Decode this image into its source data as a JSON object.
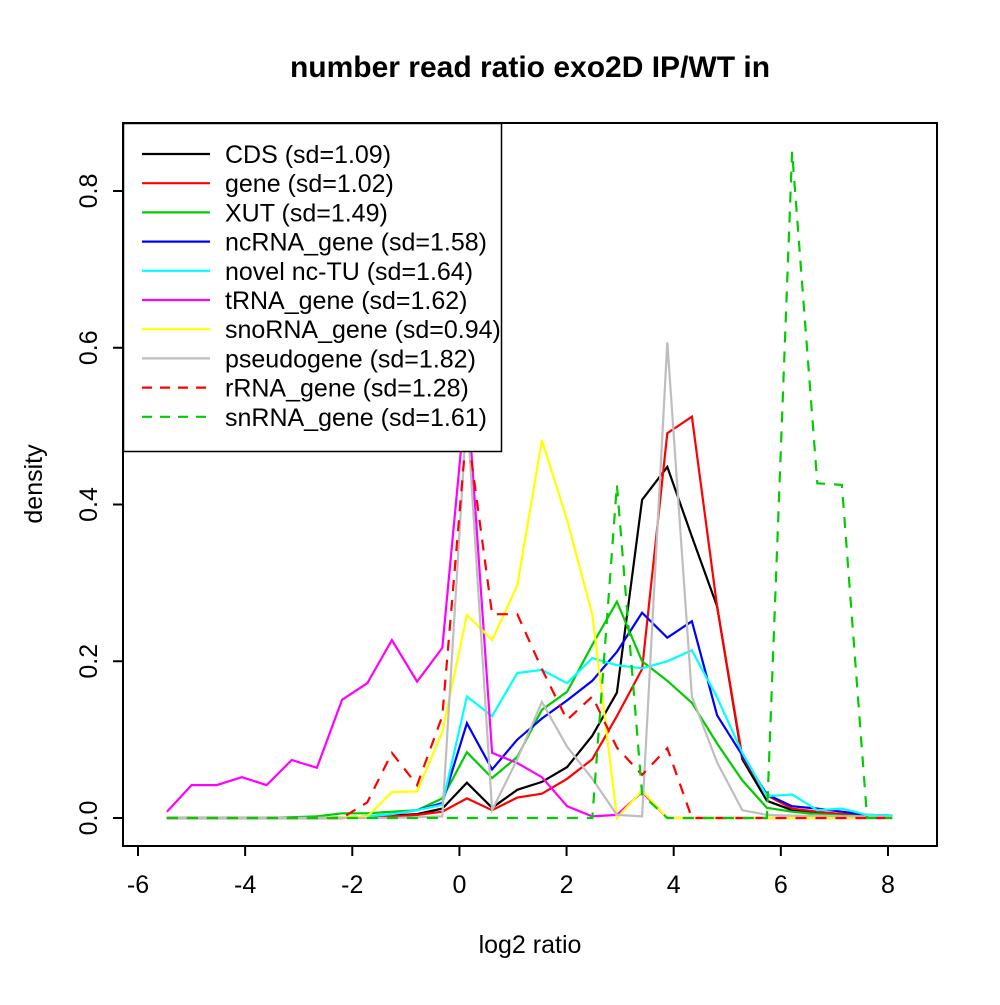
{
  "title": "number read ratio exo2D IP/WT in",
  "x_axis": {
    "label": "log2 ratio",
    "tick_labels": [
      "-6",
      "-4",
      "-2",
      "0",
      "2",
      "4",
      "6",
      "8"
    ],
    "tick_values": [
      -6,
      -4,
      -2,
      0,
      2,
      4,
      6,
      8
    ]
  },
  "y_axis": {
    "label": "density",
    "tick_labels": [
      "0.0",
      "0.2",
      "0.4",
      "0.6",
      "0.8"
    ],
    "tick_values": [
      0,
      0.2,
      0.4,
      0.6,
      0.8
    ]
  },
  "chart_data": {
    "type": "line",
    "title": "number read ratio exo2D IP/WT in",
    "xlabel": "log2 ratio",
    "ylabel": "density",
    "xlim": [
      -6.28,
      8.92
    ],
    "ylim": [
      -0.034,
      0.887
    ],
    "grid": false,
    "legend_position": "topleft",
    "x": [
      -5.46,
      -5.0,
      -4.53,
      -4.06,
      -3.6,
      -3.13,
      -2.66,
      -2.19,
      -1.72,
      -1.26,
      -0.79,
      -0.32,
      0.14,
      0.61,
      1.08,
      1.54,
      2.01,
      2.48,
      2.94,
      3.41,
      3.88,
      4.34,
      4.81,
      5.28,
      5.74,
      6.21,
      6.68,
      7.14,
      7.61,
      8.08
    ],
    "series": [
      {
        "name": "CDS",
        "label": "CDS (sd=1.09)",
        "sd": 1.09,
        "color": "#000000",
        "dash": false,
        "values": [
          0,
          0,
          0,
          0,
          0,
          0,
          0,
          0,
          0.002,
          0.003,
          0.005,
          0.012,
          0.045,
          0.013,
          0.036,
          0.046,
          0.065,
          0.105,
          0.16,
          0.406,
          0.448,
          0.359,
          0.27,
          0.075,
          0.022,
          0.01,
          0.007,
          0.005,
          0.003,
          0.002
        ]
      },
      {
        "name": "gene",
        "label": "gene (sd=1.02)",
        "sd": 1.02,
        "color": "#FF0000",
        "dash": false,
        "values": [
          0,
          0,
          0,
          0,
          0,
          0,
          0,
          0,
          0.001,
          0.002,
          0.004,
          0.008,
          0.025,
          0.01,
          0.026,
          0.031,
          0.05,
          0.075,
          0.13,
          0.19,
          0.491,
          0.512,
          0.27,
          0.078,
          0.029,
          0.012,
          0.008,
          0.005,
          0.003,
          0.002
        ]
      },
      {
        "name": "XUT",
        "label": "XUT (sd=1.49)",
        "sd": 1.49,
        "color": "#00CD00",
        "dash": false,
        "values": [
          0,
          0,
          0,
          0,
          0,
          0.001,
          0.002,
          0.006,
          0.006,
          0.008,
          0.01,
          0.025,
          0.084,
          0.051,
          0.078,
          0.138,
          0.161,
          0.221,
          0.276,
          0.2,
          0.175,
          0.147,
          0.095,
          0.048,
          0.013,
          0.008,
          0.005,
          0.003,
          0.002,
          0.002
        ]
      },
      {
        "name": "ncRNA_gene",
        "label": "ncRNA_gene (sd=1.58)",
        "sd": 1.58,
        "color": "#0000FF",
        "dash": false,
        "values": [
          0,
          0,
          0,
          0,
          0,
          0,
          0,
          0.001,
          0.002,
          0.005,
          0.01,
          0.019,
          0.121,
          0.062,
          0.1,
          0.127,
          0.15,
          0.175,
          0.212,
          0.262,
          0.23,
          0.251,
          0.131,
          0.08,
          0.03,
          0.015,
          0.012,
          0.008,
          0.004,
          0.003
        ]
      },
      {
        "name": "novel nc-TU",
        "label": "novel nc-TU (sd=1.64)",
        "sd": 1.64,
        "color": "#00FFFF",
        "dash": false,
        "values": [
          0,
          0,
          0,
          0,
          0,
          0,
          0,
          0.001,
          0.002,
          0.005,
          0.01,
          0.017,
          0.155,
          0.13,
          0.185,
          0.189,
          0.172,
          0.204,
          0.195,
          0.191,
          0.2,
          0.214,
          0.154,
          0.083,
          0.028,
          0.03,
          0.01,
          0.012,
          0.004,
          0.003
        ]
      },
      {
        "name": "tRNA_gene",
        "label": "tRNA_gene (sd=1.62)",
        "sd": 1.62,
        "color": "#FF00FF",
        "dash": false,
        "values": [
          0.008,
          0.042,
          0.042,
          0.052,
          0.042,
          0.074,
          0.064,
          0.151,
          0.172,
          0.227,
          0.174,
          0.217,
          0.55,
          0.083,
          0.07,
          0.052,
          0.015,
          0.002,
          0.004,
          0.033,
          0,
          0,
          0,
          0,
          0,
          0,
          0,
          0,
          0,
          0
        ]
      },
      {
        "name": "snoRNA_gene",
        "label": "snoRNA_gene (sd=0.94)",
        "sd": 0.94,
        "color": "#FFFF00",
        "dash": false,
        "values": [
          0,
          0,
          0,
          0,
          0,
          0,
          0,
          0.001,
          0.002,
          0.033,
          0.034,
          0.11,
          0.259,
          0.227,
          0.297,
          0.482,
          0.38,
          0.26,
          0,
          0.035,
          0,
          0,
          0,
          0,
          0,
          0,
          0,
          0,
          0,
          0
        ]
      },
      {
        "name": "pseudogene",
        "label": "pseudogene (sd=1.82)",
        "sd": 1.82,
        "color": "#BEBEBE",
        "dash": false,
        "values": [
          0,
          0,
          0,
          0,
          0,
          0,
          0,
          0,
          0,
          0,
          0.001,
          0.002,
          0.52,
          0.01,
          0.075,
          0.148,
          0.091,
          0.05,
          0.004,
          0.002,
          0.607,
          0.155,
          0.071,
          0.01,
          0.004,
          0.003,
          0.003,
          0.002,
          0.002,
          0.001
        ]
      },
      {
        "name": "rRNA_gene",
        "label": "rRNA_gene (sd=1.28)",
        "sd": 1.28,
        "color": "#FF0000",
        "dash": true,
        "values": [
          0,
          0,
          0,
          0,
          0,
          0,
          0,
          0,
          0.02,
          0.083,
          0.042,
          0.13,
          0.5,
          0.26,
          0.26,
          0.19,
          0.125,
          0.155,
          0.09,
          0.055,
          0.089,
          0,
          0,
          0,
          0,
          0,
          0,
          0,
          0,
          0
        ]
      },
      {
        "name": "snRNA_gene",
        "label": "snRNA_gene (sd=1.61)",
        "sd": 1.61,
        "color": "#00CD00",
        "dash": true,
        "values": [
          0,
          0,
          0,
          0,
          0,
          0,
          0,
          0,
          0,
          0,
          0,
          0,
          0,
          0,
          0,
          0,
          0,
          0,
          0.425,
          0.03,
          0,
          0,
          0,
          0,
          0,
          0.85,
          0.427,
          0.425,
          0,
          0
        ]
      }
    ]
  }
}
